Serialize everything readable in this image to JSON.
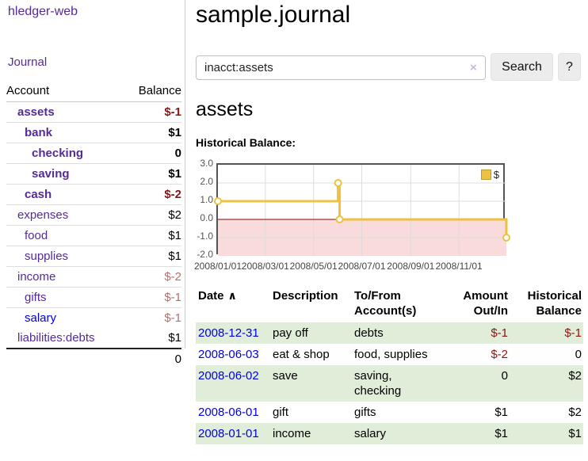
{
  "app": {
    "title": "hledger-web",
    "nav": {
      "journal": "Journal"
    }
  },
  "colors": {
    "link_purple": "#552a99",
    "link_blue": "#0000e0",
    "negative_strong": "#8e1414",
    "negative_soft": "#b56d6d",
    "row_green": "#e0edd9",
    "chart_line": "#edc240",
    "chart_negative_fill": "#fadbdb",
    "chart_zero_line": "#8b0000",
    "chart_grid": "#dcdcdc"
  },
  "sidebar": {
    "columns": {
      "account": "Account",
      "balance": "Balance"
    },
    "accounts": [
      {
        "name": "assets",
        "depth": 1,
        "bold": true,
        "balance": "$-1",
        "balance_style": "negative-strong"
      },
      {
        "name": "bank",
        "depth": 2,
        "bold": true,
        "balance": "$1",
        "balance_style": "normal"
      },
      {
        "name": "checking",
        "depth": 3,
        "bold": true,
        "balance": "0",
        "balance_style": "normal"
      },
      {
        "name": "saving",
        "depth": 3,
        "bold": true,
        "balance": "$1",
        "balance_style": "normal"
      },
      {
        "name": "cash",
        "depth": 2,
        "bold": true,
        "balance": "$-2",
        "balance_style": "negative-strong"
      },
      {
        "name": "expenses",
        "depth": 1,
        "bold": false,
        "balance": "$2",
        "balance_style": "normal"
      },
      {
        "name": "food",
        "depth": 2,
        "bold": false,
        "balance": "$1",
        "balance_style": "normal"
      },
      {
        "name": "supplies",
        "depth": 2,
        "bold": false,
        "balance": "$1",
        "balance_style": "normal"
      },
      {
        "name": "income",
        "depth": 1,
        "bold": false,
        "balance": "$-2",
        "balance_style": "negative-soft"
      },
      {
        "name": "gifts",
        "depth": 2,
        "bold": false,
        "balance": "$-1",
        "balance_style": "negative-soft"
      },
      {
        "name": "salary",
        "depth": 2,
        "bold": false,
        "balance": "$-1",
        "balance_style": "negative-soft",
        "link_color": "blue"
      },
      {
        "name": "liabilities:debts",
        "depth": 1,
        "bold": false,
        "balance": "$1",
        "balance_style": "normal"
      }
    ],
    "total": "0"
  },
  "main": {
    "title": "sample.journal",
    "search": {
      "value": "inacct:assets",
      "clear_icon": "×",
      "search_button": "Search",
      "help_button": "?"
    },
    "account_heading": "assets",
    "chart_title": "Historical Balance:"
  },
  "chart_data": {
    "type": "line",
    "step": true,
    "title": "Historical Balance",
    "series": [
      {
        "name": "$",
        "color": "#edc240",
        "points": [
          {
            "date": "2008-01-01",
            "value": 1
          },
          {
            "date": "2008-06-01",
            "value": 2
          },
          {
            "date": "2008-06-03",
            "value": 0
          },
          {
            "date": "2008-12-31",
            "value": -1
          }
        ]
      }
    ],
    "x_range": [
      "2008-01-01",
      "2008-12-31"
    ],
    "ylim": [
      -2,
      3
    ],
    "yticks": [
      "3.0",
      "2.0",
      "1.0",
      "0.0",
      "-1.0",
      "-2.0"
    ],
    "xticks": [
      {
        "label": "2008/01/01",
        "date": "2008-01-01"
      },
      {
        "label": "2008/03/01",
        "date": "2008-03-01"
      },
      {
        "label": "2008/05/01",
        "date": "2008-05-01"
      },
      {
        "label": "2008/07/01",
        "date": "2008-07-01"
      },
      {
        "label": "2008/09/01",
        "date": "2008-09-01"
      },
      {
        "label": "2008/11/01",
        "date": "2008-11-01"
      }
    ],
    "legend": {
      "label": "$",
      "position": "top-right"
    },
    "grid": true,
    "negative_region": true
  },
  "register": {
    "headers": {
      "date": "Date",
      "sort_indicator": "∧",
      "description": "Description",
      "accounts_line1": "To/From",
      "accounts_line2": "Account(s)",
      "amount_line1": "Amount",
      "amount_line2": "Out/In",
      "balance_line1": "Historical",
      "balance_line2": "Balance"
    },
    "rows": [
      {
        "date": "2008-12-31",
        "description": "pay off",
        "accounts": "debts",
        "amount": "$-1",
        "amount_negative": true,
        "balance": "$-1",
        "balance_negative": true
      },
      {
        "date": "2008-06-03",
        "description": "eat & shop",
        "accounts": "food, supplies",
        "amount": "$-2",
        "amount_negative": true,
        "balance": "0",
        "balance_negative": false
      },
      {
        "date": "2008-06-02",
        "description": "save",
        "accounts": "saving, checking",
        "amount": "0",
        "amount_negative": false,
        "balance": "$2",
        "balance_negative": false
      },
      {
        "date": "2008-06-01",
        "description": "gift",
        "accounts": "gifts",
        "amount": "$1",
        "amount_negative": false,
        "balance": "$2",
        "balance_negative": false
      },
      {
        "date": "2008-01-01",
        "description": "income",
        "accounts": "salary",
        "amount": "$1",
        "amount_negative": false,
        "balance": "$1",
        "balance_negative": false
      }
    ]
  }
}
